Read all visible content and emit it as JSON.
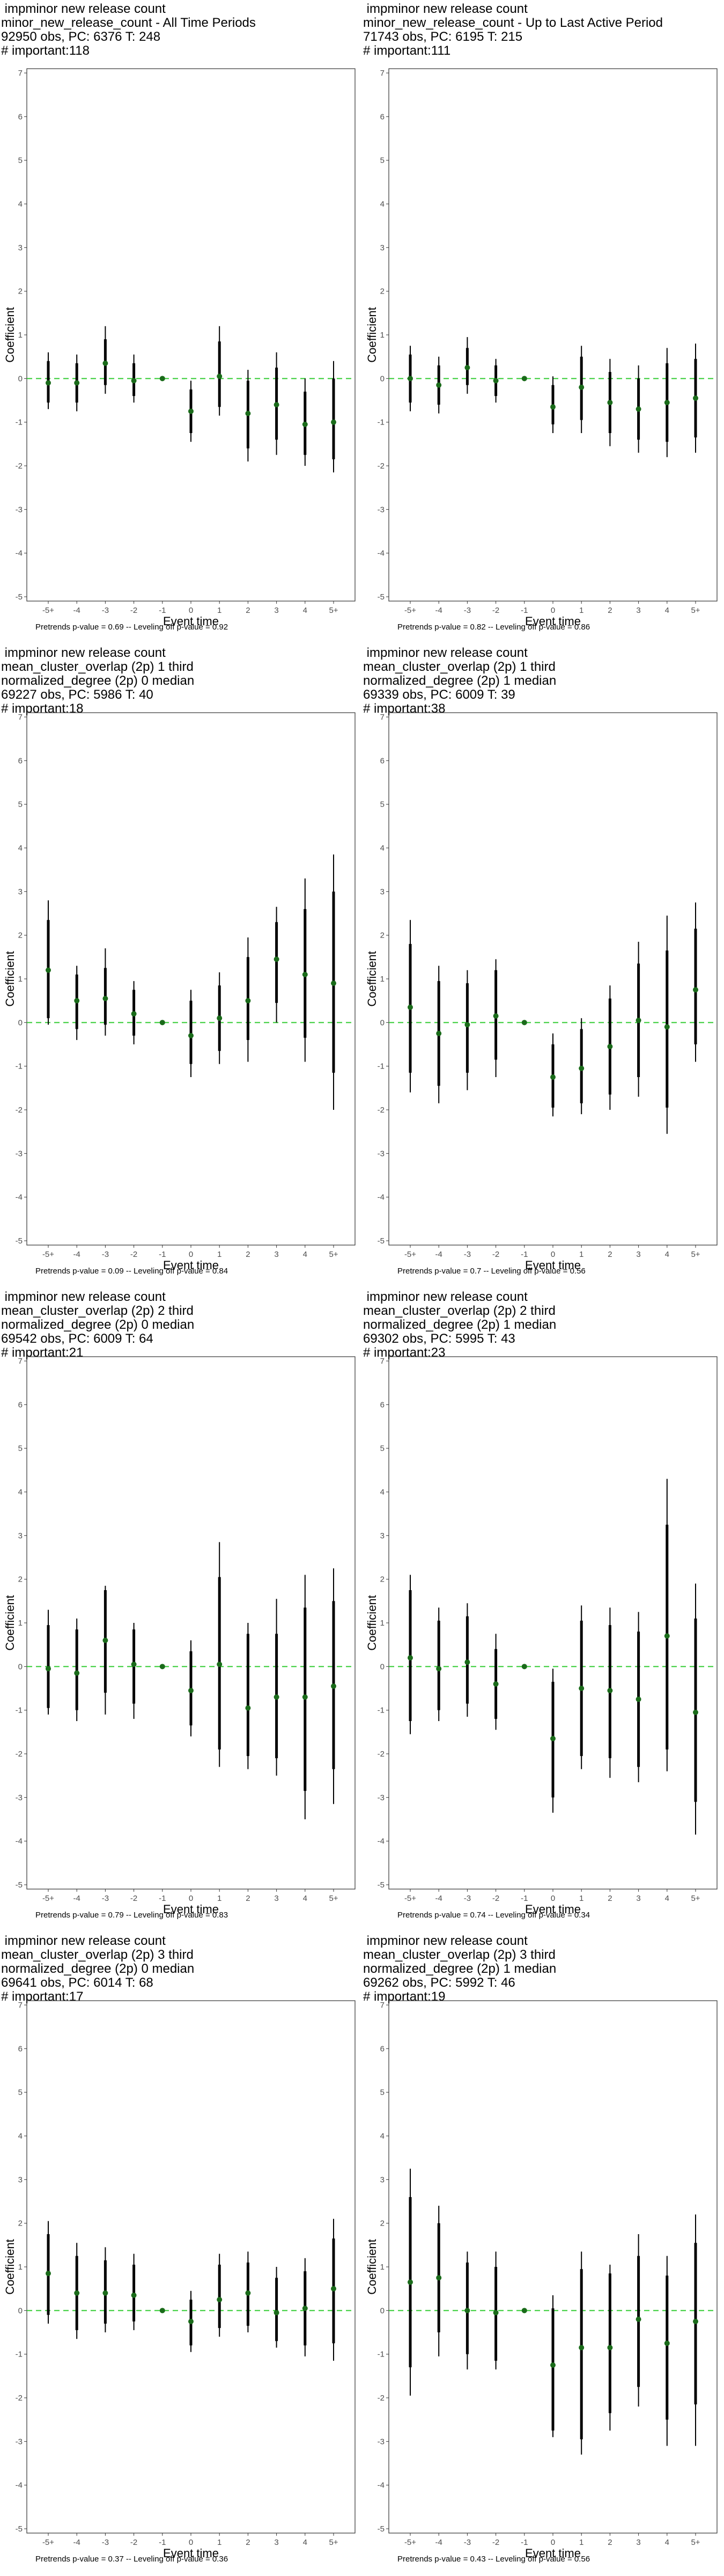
{
  "colors": {
    "point": "#1a6b1a",
    "zero_line": "#33cc33",
    "whisker": "#000000",
    "frame": "#333333",
    "tick": "#4d4d4d"
  },
  "chart_data": [
    {
      "type": "scatter",
      "title_lines": [
        " impminor new release count",
        "minor_new_release_count - All Time Periods",
        "92950 obs, PC: 6376 T: 248",
        "# important:118"
      ],
      "footer": "Pretrends p-value = 0.69 -- Leveling off p-value = 0.92",
      "xlabel": "Event time",
      "ylabel": "Coefficient",
      "categories": [
        "-5+",
        "-4",
        "-3",
        "-2",
        "-1",
        "0",
        "1",
        "2",
        "3",
        "4",
        "5+"
      ],
      "yticks": [
        -5,
        -4,
        -3,
        -2,
        -1,
        0,
        1,
        2,
        3,
        4,
        5,
        6,
        7
      ],
      "ylim": [
        -5,
        7
      ],
      "values": [
        -0.1,
        -0.1,
        0.35,
        -0.05,
        0,
        -0.75,
        0.05,
        -0.8,
        -0.6,
        -1.05,
        -1.0
      ],
      "thin_low": [
        -0.7,
        -0.75,
        -0.35,
        -0.55,
        0,
        -1.45,
        -0.85,
        -1.9,
        -1.75,
        -2.0,
        -2.15
      ],
      "thin_high": [
        0.6,
        0.55,
        1.2,
        0.55,
        0,
        -0.05,
        1.2,
        0.2,
        0.6,
        0.0,
        0.4
      ],
      "thick_low": [
        -0.55,
        -0.55,
        -0.15,
        -0.4,
        0,
        -1.25,
        -0.65,
        -1.6,
        -1.4,
        -1.75,
        -1.85
      ],
      "thick_high": [
        0.4,
        0.35,
        0.9,
        0.35,
        0,
        -0.25,
        0.85,
        -0.05,
        0.25,
        -0.3,
        0.0
      ]
    },
    {
      "type": "scatter",
      "title_lines": [
        " impminor new release count",
        "minor_new_release_count - Up to Last Active Period",
        "71743 obs, PC: 6195 T: 215",
        "# important:111"
      ],
      "footer": "Pretrends p-value = 0.82 -- Leveling off p-value = 0.86",
      "xlabel": "Event time",
      "ylabel": "Coefficient",
      "categories": [
        "-5+",
        "-4",
        "-3",
        "-2",
        "-1",
        "0",
        "1",
        "2",
        "3",
        "4",
        "5+"
      ],
      "yticks": [
        -5,
        -4,
        -3,
        -2,
        -1,
        0,
        1,
        2,
        3,
        4,
        5,
        6,
        7
      ],
      "ylim": [
        -5,
        7
      ],
      "values": [
        0.0,
        -0.15,
        0.25,
        -0.05,
        0,
        -0.65,
        -0.2,
        -0.55,
        -0.7,
        -0.55,
        -0.45
      ],
      "thin_low": [
        -0.75,
        -0.8,
        -0.35,
        -0.55,
        0,
        -1.25,
        -1.25,
        -1.55,
        -1.7,
        -1.8,
        -1.7
      ],
      "thin_high": [
        0.75,
        0.5,
        0.95,
        0.45,
        0,
        0.05,
        0.75,
        0.45,
        0.3,
        0.7,
        0.8
      ],
      "thick_low": [
        -0.55,
        -0.6,
        -0.15,
        -0.4,
        0,
        -1.05,
        -0.95,
        -1.25,
        -1.4,
        -1.45,
        -1.35
      ],
      "thick_high": [
        0.55,
        0.3,
        0.7,
        0.3,
        0,
        -0.15,
        0.5,
        0.15,
        0.0,
        0.35,
        0.45
      ]
    },
    {
      "type": "scatter",
      "title_lines": [
        " impminor new release count",
        "mean_cluster_overlap (2p) 1 third",
        "normalized_degree (2p) 0 median",
        "69227 obs, PC: 5986 T: 40",
        "# important:18"
      ],
      "footer": "Pretrends p-value = 0.09 -- Leveling off p-value = 0.84",
      "xlabel": "Event time",
      "ylabel": "Coefficient",
      "categories": [
        "-5+",
        "-4",
        "-3",
        "-2",
        "-1",
        "0",
        "1",
        "2",
        "3",
        "4",
        "5+"
      ],
      "yticks": [
        -5,
        -4,
        -3,
        -2,
        -1,
        0,
        1,
        2,
        3,
        4,
        5,
        6,
        7
      ],
      "ylim": [
        -5,
        7
      ],
      "values": [
        1.2,
        0.5,
        0.55,
        0.2,
        0,
        -0.3,
        0.1,
        0.5,
        1.45,
        1.1,
        0.9
      ],
      "thin_low": [
        -0.05,
        -0.4,
        -0.3,
        -0.5,
        0,
        -1.25,
        -0.95,
        -0.9,
        0.0,
        -0.9,
        -2.0
      ],
      "thin_high": [
        2.8,
        1.3,
        1.7,
        0.95,
        0,
        0.75,
        1.15,
        1.95,
        2.65,
        3.3,
        3.85
      ],
      "thick_low": [
        0.1,
        -0.15,
        -0.05,
        -0.3,
        0,
        -0.95,
        -0.65,
        -0.4,
        0.45,
        -0.35,
        -1.15
      ],
      "thick_high": [
        2.35,
        1.1,
        1.25,
        0.75,
        0,
        0.5,
        0.85,
        1.5,
        2.3,
        2.6,
        3.0
      ]
    },
    {
      "type": "scatter",
      "title_lines": [
        " impminor new release count",
        "mean_cluster_overlap (2p) 1 third",
        "normalized_degree (2p) 1 median",
        "69339 obs, PC: 6009 T: 39",
        "# important:38"
      ],
      "footer": "Pretrends p-value = 0.7 -- Leveling off p-value = 0.56",
      "xlabel": "Event time",
      "ylabel": "Coefficient",
      "categories": [
        "-5+",
        "-4",
        "-3",
        "-2",
        "-1",
        "0",
        "1",
        "2",
        "3",
        "4",
        "5+"
      ],
      "yticks": [
        -5,
        -4,
        -3,
        -2,
        -1,
        0,
        1,
        2,
        3,
        4,
        5,
        6,
        7
      ],
      "ylim": [
        -5,
        7
      ],
      "values": [
        0.35,
        -0.25,
        -0.05,
        0.15,
        0,
        -1.25,
        -1.05,
        -0.55,
        0.05,
        -0.1,
        0.75
      ],
      "thin_low": [
        -1.6,
        -1.85,
        -1.55,
        -1.25,
        0,
        -2.15,
        -2.1,
        -2.0,
        -1.7,
        -2.55,
        -0.9
      ],
      "thin_high": [
        2.35,
        1.3,
        1.2,
        1.45,
        0,
        -0.25,
        0.1,
        0.85,
        1.85,
        2.45,
        2.75
      ],
      "thick_low": [
        -1.15,
        -1.45,
        -1.15,
        -0.85,
        0,
        -1.95,
        -1.85,
        -1.65,
        -1.25,
        -1.95,
        -0.5
      ],
      "thick_high": [
        1.8,
        0.95,
        0.9,
        1.2,
        0,
        -0.5,
        -0.15,
        0.55,
        1.35,
        1.65,
        2.15
      ]
    },
    {
      "type": "scatter",
      "title_lines": [
        " impminor new release count",
        "mean_cluster_overlap (2p) 2 third",
        "normalized_degree (2p) 0 median",
        "69542 obs, PC: 6009 T: 64",
        "# important:21"
      ],
      "footer": "Pretrends p-value = 0.79 -- Leveling off p-value = 0.83",
      "xlabel": "Event time",
      "ylabel": "Coefficient",
      "categories": [
        "-5+",
        "-4",
        "-3",
        "-2",
        "-1",
        "0",
        "1",
        "2",
        "3",
        "4",
        "5+"
      ],
      "yticks": [
        -5,
        -4,
        -3,
        -2,
        -1,
        0,
        1,
        2,
        3,
        4,
        5,
        6,
        7
      ],
      "ylim": [
        -5,
        7
      ],
      "values": [
        -0.05,
        -0.15,
        0.6,
        0.05,
        0,
        -0.55,
        0.05,
        -0.95,
        -0.7,
        -0.7,
        -0.45
      ],
      "thin_low": [
        -1.1,
        -1.25,
        -1.1,
        -1.2,
        0,
        -1.6,
        -2.3,
        -2.35,
        -2.5,
        -3.5,
        -3.15
      ],
      "thin_high": [
        1.3,
        1.1,
        1.85,
        1.0,
        0,
        0.6,
        2.85,
        1.0,
        1.55,
        2.1,
        2.25
      ],
      "thick_low": [
        -0.95,
        -1.0,
        -0.6,
        -0.85,
        0,
        -1.35,
        -1.9,
        -2.05,
        -2.1,
        -2.85,
        -2.35
      ],
      "thick_high": [
        0.95,
        0.85,
        1.75,
        0.85,
        0,
        0.35,
        2.05,
        0.75,
        0.75,
        1.35,
        1.5
      ]
    },
    {
      "type": "scatter",
      "title_lines": [
        " impminor new release count",
        "mean_cluster_overlap (2p) 2 third",
        "normalized_degree (2p) 1 median",
        "69302 obs, PC: 5995 T: 43",
        "# important:23"
      ],
      "footer": "Pretrends p-value = 0.74 -- Leveling off p-value = 0.34",
      "xlabel": "Event time",
      "ylabel": "Coefficient",
      "categories": [
        "-5+",
        "-4",
        "-3",
        "-2",
        "-1",
        "0",
        "1",
        "2",
        "3",
        "4",
        "5+"
      ],
      "yticks": [
        -5,
        -4,
        -3,
        -2,
        -1,
        0,
        1,
        2,
        3,
        4,
        5,
        6,
        7
      ],
      "ylim": [
        -5,
        7
      ],
      "values": [
        0.2,
        -0.05,
        0.1,
        -0.4,
        0,
        -1.65,
        -0.5,
        -0.55,
        -0.75,
        0.7,
        -1.05
      ],
      "thin_low": [
        -1.55,
        -1.25,
        -1.15,
        -1.45,
        0,
        -3.35,
        -2.35,
        -2.55,
        -2.65,
        -2.4,
        -3.85
      ],
      "thin_high": [
        2.1,
        1.35,
        1.45,
        0.75,
        0,
        -0.05,
        1.4,
        1.35,
        1.25,
        4.3,
        1.9
      ],
      "thick_low": [
        -1.25,
        -1.0,
        -0.85,
        -1.2,
        0,
        -3.0,
        -2.05,
        -2.1,
        -2.3,
        -1.9,
        -3.1
      ],
      "thick_high": [
        1.75,
        1.05,
        1.15,
        0.4,
        0,
        -0.35,
        1.05,
        0.95,
        0.8,
        3.25,
        1.1
      ]
    },
    {
      "type": "scatter",
      "title_lines": [
        " impminor new release count",
        "mean_cluster_overlap (2p) 3 third",
        "normalized_degree (2p) 0 median",
        "69641 obs, PC: 6014 T: 68",
        "# important:17"
      ],
      "footer": "Pretrends p-value = 0.37 -- Leveling off p-value = 0.36",
      "xlabel": "Event time",
      "ylabel": "Coefficient",
      "categories": [
        "-5+",
        "-4",
        "-3",
        "-2",
        "-1",
        "0",
        "1",
        "2",
        "3",
        "4",
        "5+"
      ],
      "yticks": [
        -5,
        -4,
        -3,
        -2,
        -1,
        0,
        1,
        2,
        3,
        4,
        5,
        6,
        7
      ],
      "ylim": [
        -5,
        7
      ],
      "values": [
        0.85,
        0.4,
        0.4,
        0.35,
        0,
        -0.25,
        0.25,
        0.4,
        -0.05,
        0.05,
        0.5
      ],
      "thin_low": [
        -0.3,
        -0.65,
        -0.5,
        -0.45,
        0,
        -0.95,
        -0.6,
        -0.5,
        -0.85,
        -1.05,
        -1.15
      ],
      "thin_high": [
        2.05,
        1.55,
        1.45,
        1.3,
        0,
        0.45,
        1.3,
        1.35,
        1.0,
        1.2,
        2.1
      ],
      "thick_low": [
        -0.1,
        -0.45,
        -0.3,
        -0.25,
        0,
        -0.8,
        -0.4,
        -0.35,
        -0.7,
        -0.8,
        -0.75
      ],
      "thick_high": [
        1.75,
        1.25,
        1.15,
        1.05,
        0,
        0.25,
        1.05,
        1.1,
        0.75,
        0.9,
        1.65
      ]
    },
    {
      "type": "scatter",
      "title_lines": [
        " impminor new release count",
        "mean_cluster_overlap (2p) 3 third",
        "normalized_degree (2p) 1 median",
        "69262 obs, PC: 5992 T: 46",
        "# important:19"
      ],
      "footer": "Pretrends p-value = 0.43 -- Leveling off p-value = 0.56",
      "xlabel": "Event time",
      "ylabel": "Coefficient",
      "categories": [
        "-5+",
        "-4",
        "-3",
        "-2",
        "-1",
        "0",
        "1",
        "2",
        "3",
        "4",
        "5+"
      ],
      "yticks": [
        -5,
        -4,
        -3,
        -2,
        -1,
        0,
        1,
        2,
        3,
        4,
        5,
        6,
        7
      ],
      "ylim": [
        -5,
        7
      ],
      "values": [
        0.65,
        0.75,
        0.0,
        -0.05,
        0,
        -1.25,
        -0.85,
        -0.85,
        -0.2,
        -0.75,
        -0.25
      ],
      "thin_low": [
        -1.95,
        -1.05,
        -1.35,
        -1.35,
        0,
        -2.9,
        -3.3,
        -2.75,
        -2.2,
        -3.1,
        -3.1
      ],
      "thin_high": [
        3.25,
        2.4,
        1.35,
        1.35,
        0,
        0.35,
        1.35,
        1.05,
        1.75,
        1.25,
        2.2
      ],
      "thick_low": [
        -1.3,
        -0.5,
        -1.0,
        -1.15,
        0,
        -2.75,
        -2.95,
        -2.35,
        -1.75,
        -2.5,
        -2.15
      ],
      "thick_high": [
        2.6,
        2.0,
        1.1,
        1.0,
        0,
        0.05,
        0.95,
        0.85,
        1.25,
        0.8,
        1.55
      ]
    }
  ]
}
